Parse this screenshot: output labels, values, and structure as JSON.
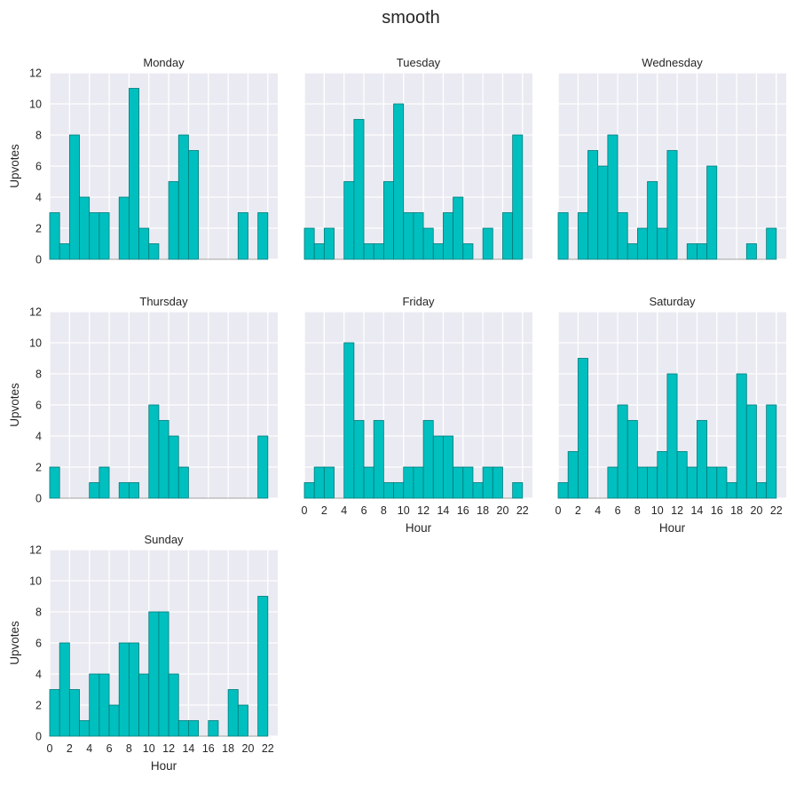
{
  "chart_data": {
    "type": "bar",
    "title": "smooth",
    "xlabel": "Hour",
    "ylabel": "Upvotes",
    "xlim": [
      0,
      23
    ],
    "ylim": [
      0,
      12
    ],
    "xticks": [
      0,
      2,
      4,
      6,
      8,
      10,
      12,
      14,
      16,
      18,
      20,
      22
    ],
    "yticks": [
      0,
      2,
      4,
      6,
      8,
      10,
      12
    ],
    "bin_edges": [
      0,
      1,
      2,
      3,
      4,
      5,
      6,
      7,
      8,
      9,
      10,
      11,
      12,
      13,
      14,
      15,
      16,
      17,
      18,
      19,
      20,
      21,
      22
    ],
    "grid": true,
    "bar_color": "#00bfbf",
    "bar_edge_color": "#007a7a",
    "background_color": "#eaeaf2",
    "panels": [
      {
        "name": "Monday",
        "values": [
          3,
          1,
          8,
          4,
          3,
          3,
          0,
          4,
          11,
          2,
          1,
          0,
          5,
          8,
          7,
          0,
          0,
          0,
          0,
          3,
          0,
          3
        ]
      },
      {
        "name": "Tuesday",
        "values": [
          2,
          1,
          2,
          0,
          5,
          9,
          1,
          1,
          5,
          10,
          3,
          3,
          2,
          1,
          3,
          4,
          1,
          0,
          2,
          0,
          3,
          8
        ]
      },
      {
        "name": "Wednesday",
        "values": [
          3,
          0,
          3,
          7,
          6,
          8,
          3,
          1,
          2,
          5,
          2,
          7,
          0,
          1,
          1,
          6,
          0,
          0,
          0,
          1,
          0,
          2
        ]
      },
      {
        "name": "Thursday",
        "values": [
          2,
          0,
          0,
          0,
          1,
          2,
          0,
          1,
          1,
          0,
          6,
          5,
          4,
          2,
          0,
          0,
          0,
          0,
          0,
          0,
          0,
          4
        ]
      },
      {
        "name": "Friday",
        "values": [
          1,
          2,
          2,
          0,
          10,
          5,
          2,
          5,
          1,
          1,
          2,
          2,
          5,
          4,
          4,
          2,
          2,
          1,
          2,
          2,
          0,
          1
        ]
      },
      {
        "name": "Saturday",
        "values": [
          1,
          3,
          9,
          0,
          0,
          2,
          6,
          5,
          2,
          2,
          3,
          8,
          3,
          2,
          5,
          2,
          2,
          1,
          8,
          6,
          1,
          6
        ]
      },
      {
        "name": "Sunday",
        "values": [
          3,
          6,
          3,
          1,
          4,
          4,
          2,
          6,
          6,
          4,
          8,
          8,
          4,
          1,
          1,
          0,
          1,
          0,
          3,
          2,
          0,
          9
        ]
      }
    ]
  }
}
